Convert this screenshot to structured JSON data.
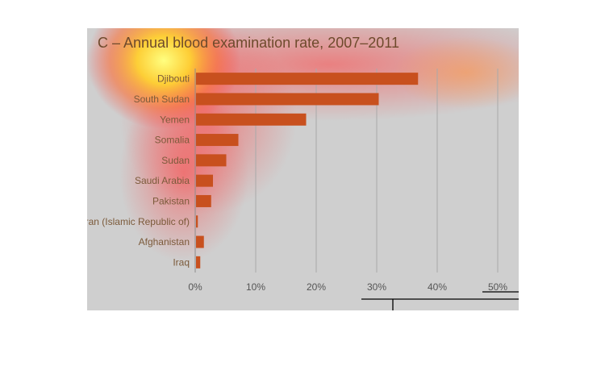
{
  "chart_data": {
    "type": "bar",
    "orientation": "horizontal",
    "title": "C – Annual blood examination rate, 2007–2011",
    "categories": [
      "Djibouti",
      "South Sudan",
      "Yemen",
      "Somalia",
      "Sudan",
      "Saudi Arabia",
      "Pakistan",
      "Iran (Islamic Republic of)",
      "Afghanistan",
      "Iraq"
    ],
    "values": [
      36.7,
      30.2,
      18.2,
      7.0,
      5.0,
      2.8,
      2.5,
      0.3,
      1.3,
      0.7
    ],
    "xlim": [
      0,
      50
    ],
    "xticks": [
      0,
      10,
      20,
      30,
      40,
      50
    ],
    "xtick_labels": [
      "0%",
      "10%",
      "20%",
      "30%",
      "40%",
      "50%"
    ],
    "grid": true,
    "colors": {
      "bar": "#c8501e",
      "background": "#cfcfcf"
    }
  }
}
